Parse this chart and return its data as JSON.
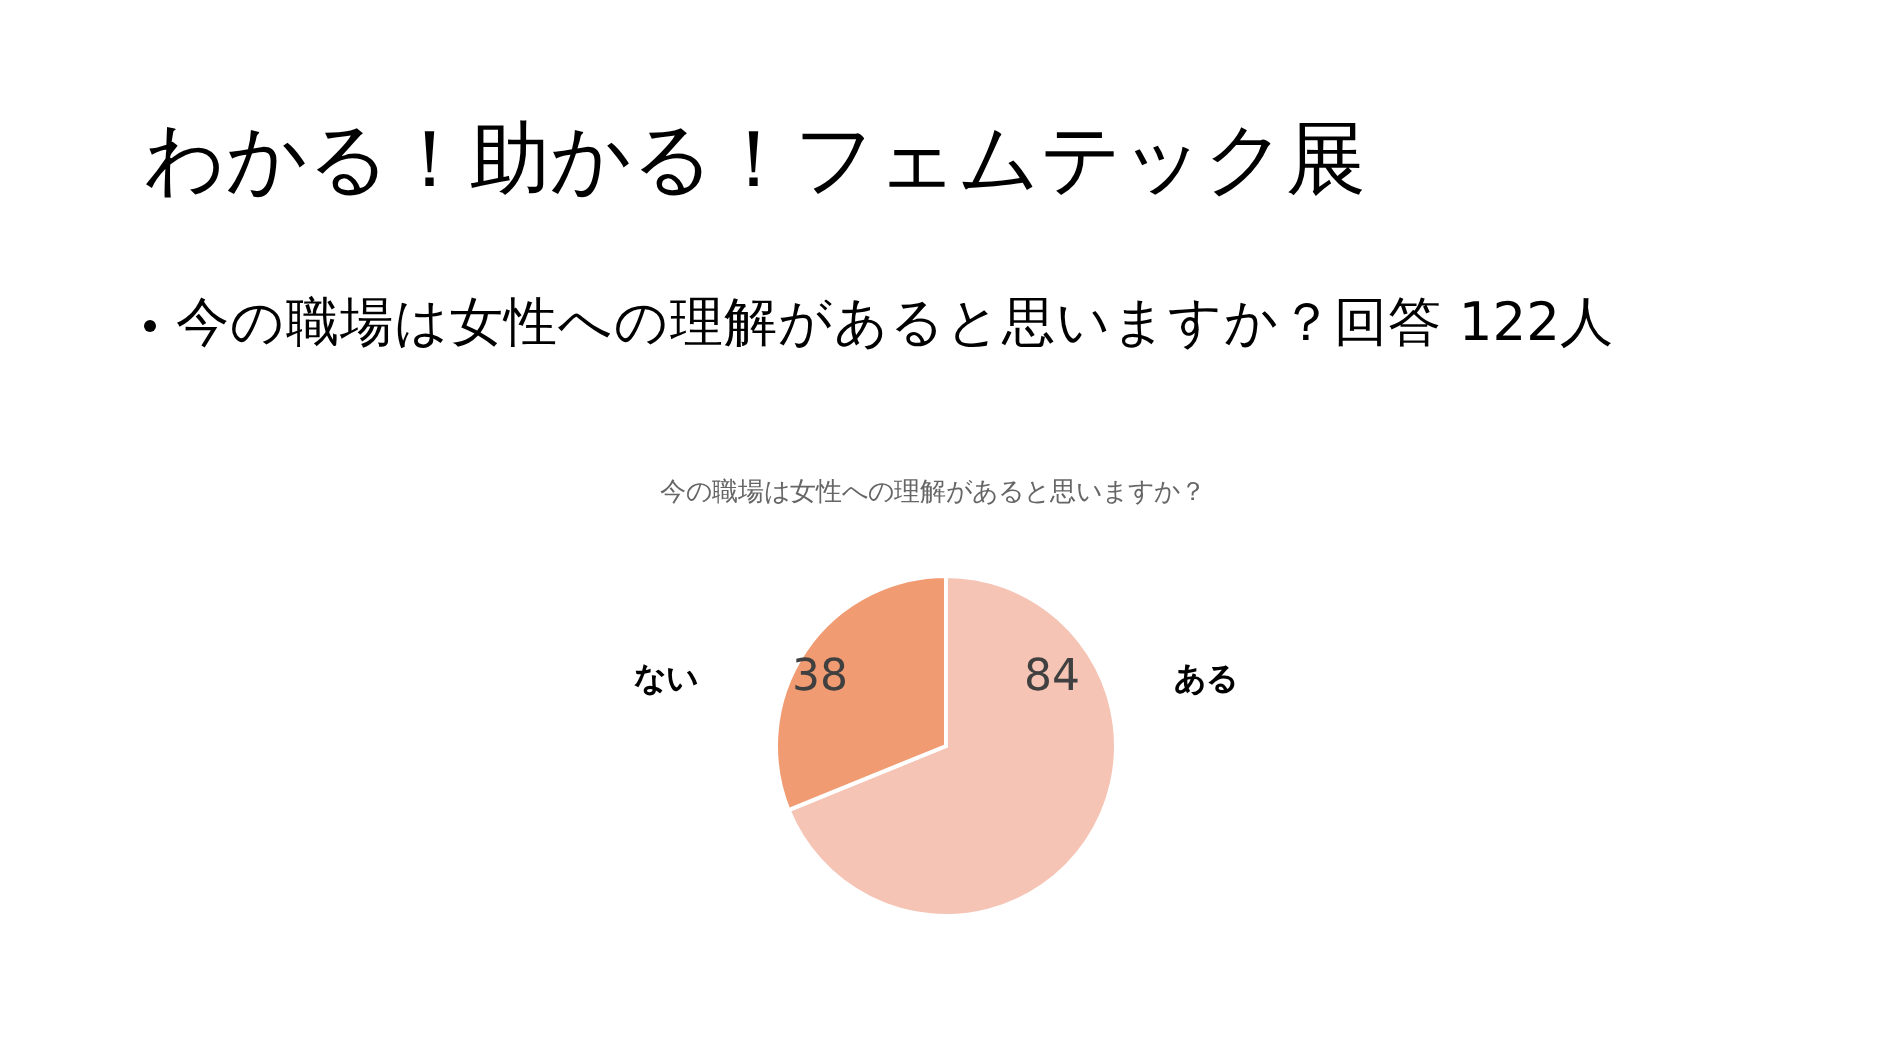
{
  "chart_data": {
    "type": "pie",
    "title": "わかる！助かる！フェムテック展",
    "subtitle": "今の職場は女性への理解があると思いますか？回答 122人",
    "annotations": [
      "今の職場は女性への理解があると思いますか？"
    ],
    "categories": [
      "ある",
      "ない"
    ],
    "values": [
      84,
      38
    ],
    "colors": [
      "#f5c4b4",
      "#f09b72"
    ],
    "data_labels": true
  }
}
